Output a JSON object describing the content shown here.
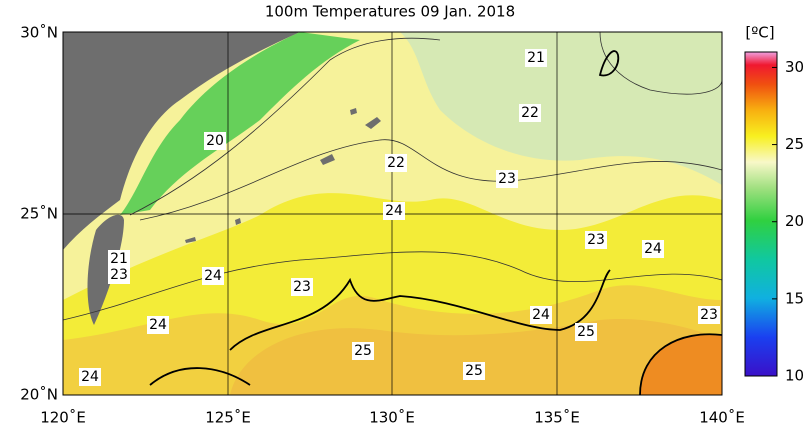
{
  "title": "100m Temperatures  09 Jan. 2018",
  "x_axis": {
    "labels": [
      "120˚E",
      "125˚E",
      "130˚E",
      "135˚E",
      "140˚E"
    ]
  },
  "y_axis": {
    "labels": [
      "30˚N",
      "25˚N",
      "20˚N"
    ]
  },
  "colorbar": {
    "unit": "[ºC]",
    "ylim": [
      10,
      31
    ],
    "ticks": [
      10,
      15,
      20,
      25,
      30
    ]
  },
  "contour_labels": [
    21,
    22,
    20,
    22,
    23,
    24,
    23,
    24,
    21,
    23,
    24,
    23,
    24,
    23,
    24,
    25,
    25,
    25,
    24
  ]
}
